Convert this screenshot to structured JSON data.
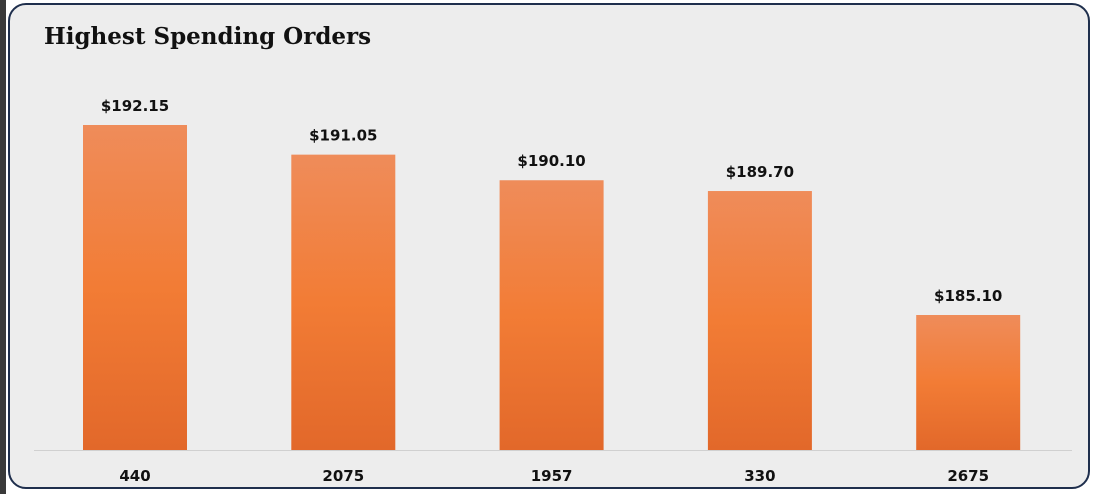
{
  "chart_data": {
    "type": "bar",
    "title": "Highest Spending Orders",
    "xlabel": "",
    "ylabel": "",
    "categories": [
      "440",
      "2075",
      "1957",
      "330",
      "2675"
    ],
    "values": [
      192.15,
      191.05,
      190.1,
      189.7,
      185.1
    ],
    "data_labels": [
      "$192.15",
      "$191.05",
      "$190.10",
      "$189.70",
      "$185.10"
    ],
    "grid": false,
    "legend": "none",
    "bar_color_top": "#ef8c5a",
    "bar_color_mid": "#f27c35",
    "bar_color_bottom": "#e2682a",
    "axis_line_color": "#d0d0d0"
  }
}
